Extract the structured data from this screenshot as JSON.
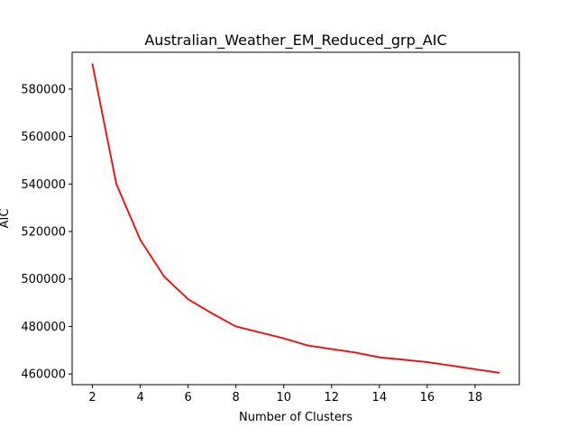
{
  "chart_data": {
    "type": "line",
    "title": "Australian_Weather_EM_Reduced_grp_AIC",
    "xlabel": "Number of Clusters",
    "ylabel": "AIC",
    "xlim": [
      1.15,
      19.85
    ],
    "ylim": [
      455500,
      595500
    ],
    "grid": false,
    "x_ticks": [
      2,
      4,
      6,
      8,
      10,
      12,
      14,
      16,
      18
    ],
    "y_ticks": [
      460000,
      480000,
      500000,
      520000,
      540000,
      560000,
      580000
    ],
    "x_tick_labels": [
      "2",
      "4",
      "6",
      "8",
      "10",
      "12",
      "14",
      "16",
      "18"
    ],
    "y_tick_labels": [
      "460000",
      "480000",
      "500000",
      "520000",
      "540000",
      "560000",
      "580000"
    ],
    "series": [
      {
        "color": "#ff0000",
        "x": [
          2,
          3,
          4,
          5,
          6,
          7,
          8,
          9,
          10,
          11,
          12,
          13,
          14,
          15,
          16,
          17,
          18,
          19
        ],
        "y": [
          590500,
          540000,
          516500,
          501000,
          491500,
          485500,
          480000,
          477500,
          475000,
          472000,
          470500,
          469000,
          467000,
          466000,
          465000,
          463500,
          462000,
          460500
        ]
      }
    ]
  }
}
